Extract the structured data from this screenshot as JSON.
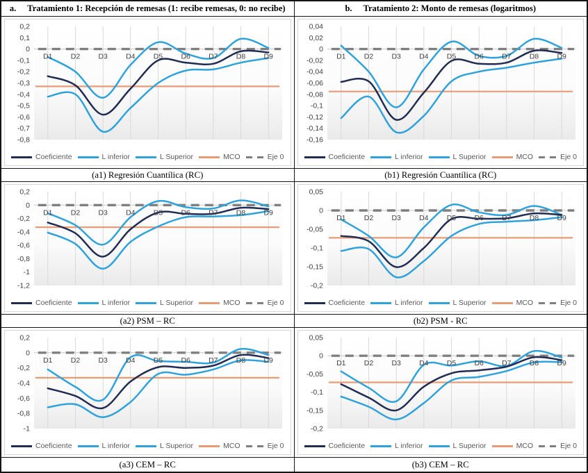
{
  "header": {
    "col_a_prefix": "a.",
    "col_a_title": "Tratamiento 1: Recepción de remesas (1: recibe remesas, 0: no recibe)",
    "col_b_prefix": "b.",
    "col_b_title": "Tratamiento 2: Monto de remesas (logaritmos)"
  },
  "captions": [
    "(a1) Regresión Cuantílica (RC)",
    "(b1) Regresión Cuantílica (RC)",
    "(a2) PSM – RC",
    "(b2) PSM - RC",
    "(a3) CEM – RC",
    "(b3) CEM – RC"
  ],
  "colors": {
    "coeficiente": "#202c52",
    "banda_confianza": "#2fa2db",
    "mco": "#e89b77",
    "eje0": "#7f7f7f",
    "gridline": "#d9d9d9",
    "zero_axis": "#c8c8c8",
    "tick_text": "#404040"
  },
  "legend": {
    "position": "bottom",
    "items": [
      {
        "label": "Coeficiente",
        "color": "#202c52",
        "style": "solid"
      },
      {
        "label": "L inferior",
        "color": "#2fa2db",
        "style": "solid"
      },
      {
        "label": "L Superior",
        "color": "#2fa2db",
        "style": "solid"
      },
      {
        "label": "MCO",
        "color": "#e89b77",
        "style": "solid"
      },
      {
        "label": "Eje 0",
        "color": "#7f7f7f",
        "style": "dashed"
      }
    ]
  },
  "chart_data": [
    {
      "id": "a1",
      "type": "line",
      "title": "(a1) Regresión Cuantílica (RC)",
      "categories": [
        "D1",
        "D2",
        "D3",
        "D4",
        "D5",
        "D6",
        "D7",
        "D8",
        "D9"
      ],
      "ylim": [
        -0.8,
        0.2
      ],
      "grid": "vertical",
      "legend_position": "bottom",
      "yticks": [
        [
          0.2,
          "0,2"
        ],
        [
          0.1,
          "0,1"
        ],
        [
          0,
          "0"
        ],
        [
          -0.1,
          "-0,1"
        ],
        [
          -0.2,
          "-0,2"
        ],
        [
          -0.3,
          "-0,3"
        ],
        [
          -0.4,
          "-0,4"
        ],
        [
          -0.5,
          "-0,5"
        ],
        [
          -0.6,
          "-0,6"
        ],
        [
          -0.7,
          "-0,7"
        ],
        [
          -0.8,
          "-0,8"
        ]
      ],
      "series": [
        {
          "name": "Coeficiente",
          "color": "#202c52",
          "values": [
            -0.24,
            -0.32,
            -0.58,
            -0.35,
            -0.1,
            -0.12,
            -0.13,
            -0.02,
            -0.03
          ]
        },
        {
          "name": "L inferior",
          "color": "#2fa2db",
          "values": [
            -0.42,
            -0.4,
            -0.73,
            -0.52,
            -0.3,
            -0.19,
            -0.18,
            -0.12,
            -0.08
          ]
        },
        {
          "name": "L Superior",
          "color": "#2fa2db",
          "values": [
            -0.07,
            -0.2,
            -0.43,
            -0.14,
            0.06,
            -0.04,
            -0.08,
            0.09,
            0.01
          ]
        },
        {
          "name": "MCO",
          "color": "#e89b77",
          "value": -0.33
        },
        {
          "name": "Eje 0",
          "color": "#7f7f7f",
          "value": 0,
          "dashed": true
        }
      ]
    },
    {
      "id": "b1",
      "type": "line",
      "title": "(b1) Regresión Cuantílica (RC)",
      "categories": [
        "D1",
        "D2",
        "D3",
        "D4",
        "D5",
        "D6",
        "D7",
        "D8",
        "D9"
      ],
      "ylim": [
        -0.16,
        0.04
      ],
      "grid": "vertical",
      "legend_position": "bottom",
      "yticks": [
        [
          0.04,
          "0,04"
        ],
        [
          0.02,
          "0,02"
        ],
        [
          0,
          "0"
        ],
        [
          -0.02,
          "-0,02"
        ],
        [
          -0.04,
          "-0,04"
        ],
        [
          -0.06,
          "-0,06"
        ],
        [
          -0.08,
          "-0,08"
        ],
        [
          -0.1,
          "-0,1"
        ],
        [
          -0.12,
          "-0,12"
        ],
        [
          -0.14,
          "-0,14"
        ],
        [
          -0.16,
          "-0,16"
        ]
      ],
      "series": [
        {
          "name": "Coeficiente",
          "color": "#202c52",
          "values": [
            -0.058,
            -0.057,
            -0.125,
            -0.077,
            -0.021,
            -0.026,
            -0.024,
            -0.003,
            -0.007
          ]
        },
        {
          "name": "L inferior",
          "color": "#2fa2db",
          "values": [
            -0.122,
            -0.084,
            -0.147,
            -0.118,
            -0.057,
            -0.04,
            -0.033,
            -0.024,
            -0.017
          ]
        },
        {
          "name": "L Superior",
          "color": "#2fa2db",
          "values": [
            0.006,
            -0.04,
            -0.103,
            -0.036,
            0.013,
            -0.012,
            -0.012,
            0.018,
            0.002
          ]
        },
        {
          "name": "MCO",
          "color": "#e89b77",
          "value": -0.075
        },
        {
          "name": "Eje 0",
          "color": "#7f7f7f",
          "value": 0,
          "dashed": true
        }
      ]
    },
    {
      "id": "a2",
      "type": "line",
      "title": "(a2) PSM – RC",
      "categories": [
        "D1",
        "D2",
        "D3",
        "D4",
        "D5",
        "D6",
        "D7",
        "D8",
        "D9"
      ],
      "ylim": [
        -1.2,
        0.2
      ],
      "grid": "vertical",
      "legend_position": "bottom",
      "yticks": [
        [
          0.2,
          "0,2"
        ],
        [
          0,
          "0"
        ],
        [
          -0.2,
          "-0,2"
        ],
        [
          -0.4,
          "-0,4"
        ],
        [
          -0.6,
          "-0,6"
        ],
        [
          -0.8,
          "-0,8"
        ],
        [
          -1,
          "-1"
        ],
        [
          -1.2,
          "-1,2"
        ]
      ],
      "series": [
        {
          "name": "Coeficiente",
          "color": "#202c52",
          "values": [
            -0.26,
            -0.42,
            -0.77,
            -0.36,
            -0.11,
            -0.13,
            -0.13,
            -0.04,
            -0.06
          ]
        },
        {
          "name": "L inferior",
          "color": "#2fa2db",
          "values": [
            -0.41,
            -0.58,
            -0.95,
            -0.55,
            -0.32,
            -0.18,
            -0.17,
            -0.15,
            -0.09
          ]
        },
        {
          "name": "L Superior",
          "color": "#2fa2db",
          "values": [
            -0.12,
            -0.3,
            -0.59,
            -0.18,
            0.06,
            -0.03,
            -0.05,
            0.07,
            -0.02
          ]
        },
        {
          "name": "MCO",
          "color": "#e89b77",
          "value": -0.33
        },
        {
          "name": "Eje 0",
          "color": "#7f7f7f",
          "value": 0,
          "dashed": true
        }
      ]
    },
    {
      "id": "b2",
      "type": "line",
      "title": "(b2) PSM - RC",
      "categories": [
        "D1",
        "D2",
        "D3",
        "D4",
        "D5",
        "D6",
        "D7",
        "D8",
        "D9"
      ],
      "ylim": [
        -0.2,
        0.05
      ],
      "grid": "vertical",
      "legend_position": "bottom",
      "yticks": [
        [
          0.05,
          "0,05"
        ],
        [
          0,
          "0"
        ],
        [
          -0.05,
          "-0,05"
        ],
        [
          -0.1,
          "-0,1"
        ],
        [
          -0.15,
          "-0,15"
        ],
        [
          -0.2,
          "-0,2"
        ]
      ],
      "series": [
        {
          "name": "Coeficiente",
          "color": "#202c52",
          "values": [
            -0.068,
            -0.082,
            -0.151,
            -0.1,
            -0.023,
            -0.022,
            -0.021,
            -0.008,
            -0.012
          ]
        },
        {
          "name": "L inferior",
          "color": "#2fa2db",
          "values": [
            -0.108,
            -0.103,
            -0.178,
            -0.135,
            -0.068,
            -0.036,
            -0.03,
            -0.026,
            -0.018
          ]
        },
        {
          "name": "L Superior",
          "color": "#2fa2db",
          "values": [
            -0.024,
            -0.068,
            -0.125,
            -0.045,
            0.015,
            -0.005,
            -0.012,
            0.012,
            -0.012
          ]
        },
        {
          "name": "MCO",
          "color": "#e89b77",
          "value": -0.073
        },
        {
          "name": "Eje 0",
          "color": "#7f7f7f",
          "value": 0,
          "dashed": true
        }
      ]
    },
    {
      "id": "a3",
      "type": "line",
      "title": "(a3) CEM – RC",
      "categories": [
        "D1",
        "D2",
        "D3",
        "D4",
        "D5",
        "D6",
        "D7",
        "D8",
        "D9"
      ],
      "ylim": [
        -1,
        0.2
      ],
      "grid": "vertical",
      "legend_position": "bottom",
      "yticks": [
        [
          0.2,
          "0,2"
        ],
        [
          0,
          "0"
        ],
        [
          -0.2,
          "-0,2"
        ],
        [
          -0.4,
          "-0,4"
        ],
        [
          -0.6,
          "-0,6"
        ],
        [
          -0.8,
          "-0,8"
        ],
        [
          -1,
          "-1"
        ]
      ],
      "series": [
        {
          "name": "Coeficiente",
          "color": "#202c52",
          "values": [
            -0.47,
            -0.57,
            -0.73,
            -0.38,
            -0.19,
            -0.2,
            -0.17,
            -0.03,
            -0.07
          ]
        },
        {
          "name": "L inferior",
          "color": "#2fa2db",
          "values": [
            -0.72,
            -0.68,
            -0.85,
            -0.65,
            -0.28,
            -0.29,
            -0.22,
            -0.1,
            -0.12
          ]
        },
        {
          "name": "L Superior",
          "color": "#2fa2db",
          "values": [
            -0.22,
            -0.45,
            -0.62,
            -0.06,
            -0.11,
            -0.12,
            -0.13,
            0.05,
            -0.03
          ]
        },
        {
          "name": "MCO",
          "color": "#e89b77",
          "value": -0.33
        },
        {
          "name": "Eje 0",
          "color": "#7f7f7f",
          "value": 0,
          "dashed": true
        }
      ]
    },
    {
      "id": "b3",
      "type": "line",
      "title": "(b3) CEM – RC",
      "categories": [
        "D1",
        "D2",
        "D3",
        "D4",
        "D5",
        "D6",
        "D7",
        "D8",
        "D9"
      ],
      "ylim": [
        -0.2,
        0.05
      ],
      "grid": "vertical",
      "legend_position": "bottom",
      "yticks": [
        [
          0.05,
          "0,05"
        ],
        [
          0,
          "0"
        ],
        [
          -0.05,
          "-0,05"
        ],
        [
          -0.1,
          "-0,1"
        ],
        [
          -0.15,
          "-0,15"
        ],
        [
          -0.2,
          "-0,2"
        ]
      ],
      "series": [
        {
          "name": "Coeficiente",
          "color": "#202c52",
          "values": [
            -0.078,
            -0.115,
            -0.15,
            -0.085,
            -0.048,
            -0.04,
            -0.03,
            -0.004,
            -0.012
          ]
        },
        {
          "name": "L inferior",
          "color": "#2fa2db",
          "values": [
            -0.112,
            -0.14,
            -0.175,
            -0.13,
            -0.068,
            -0.058,
            -0.042,
            -0.018,
            -0.018
          ]
        },
        {
          "name": "L Superior",
          "color": "#2fa2db",
          "values": [
            -0.043,
            -0.088,
            -0.125,
            -0.025,
            -0.027,
            -0.015,
            -0.028,
            0.013,
            -0.005
          ]
        },
        {
          "name": "MCO",
          "color": "#e89b77",
          "value": -0.073
        },
        {
          "name": "Eje 0",
          "color": "#7f7f7f",
          "value": 0,
          "dashed": true
        }
      ]
    }
  ]
}
